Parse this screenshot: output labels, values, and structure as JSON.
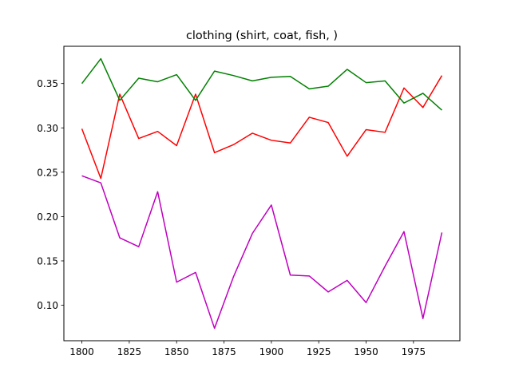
{
  "chart_data": {
    "type": "line",
    "title": "clothing (shirt, coat, fish, )",
    "xlabel": "",
    "ylabel": "",
    "xlim": [
      1790.5,
      1999.5
    ],
    "ylim": [
      0.06,
      0.392
    ],
    "grid": false,
    "x": [
      1800,
      1810,
      1820,
      1830,
      1840,
      1850,
      1860,
      1870,
      1880,
      1890,
      1900,
      1910,
      1920,
      1930,
      1940,
      1950,
      1960,
      1970,
      1980,
      1990
    ],
    "xticks": [
      1800,
      1825,
      1850,
      1875,
      1900,
      1925,
      1950,
      1975
    ],
    "xtick_labels": [
      "1800",
      "1825",
      "1850",
      "1875",
      "1900",
      "1925",
      "1950",
      "1975"
    ],
    "yticks": [
      0.1,
      0.15,
      0.2,
      0.25,
      0.3,
      0.35
    ],
    "ytick_labels": [
      "0.10",
      "0.15",
      "0.20",
      "0.25",
      "0.30",
      "0.35"
    ],
    "series": [
      {
        "color": "#ff0000",
        "values": [
          0.299,
          0.243,
          0.338,
          0.288,
          0.296,
          0.28,
          0.338,
          0.272,
          0.281,
          0.294,
          0.286,
          0.283,
          0.312,
          0.306,
          0.268,
          0.298,
          0.295,
          0.345,
          0.323,
          0.359
        ]
      },
      {
        "color": "#008000",
        "values": [
          0.35,
          0.378,
          0.331,
          0.356,
          0.352,
          0.36,
          0.331,
          0.364,
          0.359,
          0.353,
          0.357,
          0.358,
          0.344,
          0.347,
          0.366,
          0.351,
          0.353,
          0.328,
          0.339,
          0.32
        ]
      },
      {
        "color": "#bf00bf",
        "values": [
          0.246,
          0.238,
          0.176,
          0.166,
          0.228,
          0.126,
          0.137,
          0.074,
          0.132,
          0.181,
          0.213,
          0.134,
          0.133,
          0.115,
          0.128,
          0.103,
          0.144,
          0.183,
          0.085,
          0.182
        ]
      }
    ]
  }
}
